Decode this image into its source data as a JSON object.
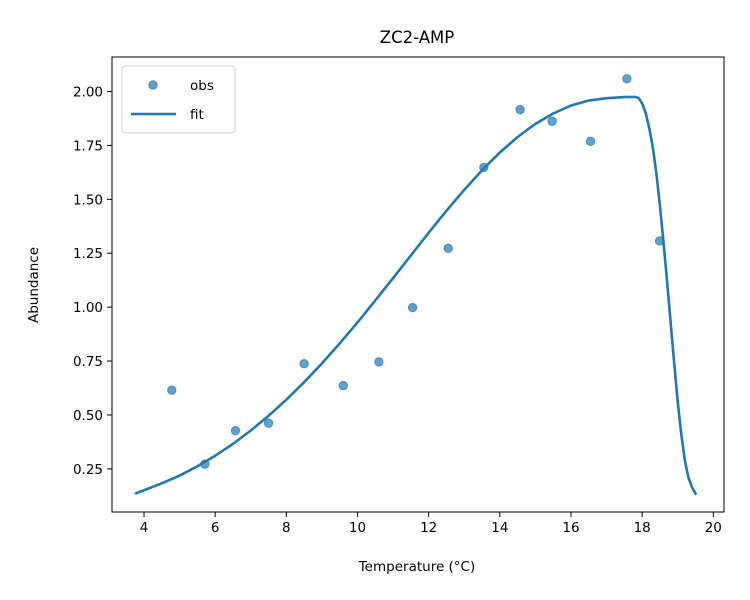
{
  "chart_data": {
    "type": "scatter",
    "title": "ZC2-AMP",
    "xlabel": "Temperature (°C)",
    "ylabel": "Abundance",
    "xlim": [
      3.1,
      20.3
    ],
    "ylim": [
      0.05,
      2.16
    ],
    "xticks": [
      4,
      6,
      8,
      10,
      12,
      14,
      16,
      18,
      20
    ],
    "yticks": [
      0.25,
      0.5,
      0.75,
      1.0,
      1.25,
      1.5,
      1.75,
      2.0
    ],
    "ytick_labels": [
      "0.25",
      "0.50",
      "0.75",
      "1.00",
      "1.25",
      "1.50",
      "1.75",
      "2.00"
    ],
    "grid": false,
    "legend_position": "top-left",
    "colors": {
      "series": "#1f77b4"
    },
    "series": [
      {
        "name": "obs",
        "kind": "scatter",
        "x": [
          4.78,
          5.71,
          6.57,
          7.5,
          8.5,
          9.6,
          10.6,
          11.55,
          12.55,
          13.55,
          14.57,
          15.47,
          16.55,
          17.57,
          18.49
        ],
        "y": [
          0.615,
          0.272,
          0.427,
          0.462,
          0.738,
          0.636,
          0.746,
          0.998,
          1.273,
          1.648,
          1.916,
          1.862,
          1.769,
          2.059,
          1.307
        ]
      },
      {
        "name": "fit",
        "kind": "line",
        "x": [
          3.78,
          4.5,
          5.0,
          5.5,
          6.0,
          6.5,
          7.0,
          7.5,
          8.0,
          8.5,
          9.0,
          9.5,
          10.0,
          10.5,
          11.0,
          11.5,
          12.0,
          12.5,
          13.0,
          13.5,
          14.0,
          14.5,
          15.0,
          15.5,
          16.0,
          16.5,
          17.0,
          17.5,
          17.8,
          17.9,
          18.0,
          18.1,
          18.2,
          18.3,
          18.4,
          18.5,
          18.6,
          18.7,
          18.8,
          18.9,
          19.0,
          19.1,
          19.2,
          19.3,
          19.4,
          19.5
        ],
        "y": [
          0.137,
          0.183,
          0.219,
          0.262,
          0.311,
          0.366,
          0.428,
          0.496,
          0.571,
          0.652,
          0.739,
          0.832,
          0.929,
          1.031,
          1.135,
          1.24,
          1.345,
          1.447,
          1.544,
          1.635,
          1.717,
          1.789,
          1.85,
          1.898,
          1.935,
          1.958,
          1.969,
          1.974,
          1.975,
          1.97,
          1.945,
          1.9,
          1.83,
          1.74,
          1.62,
          1.47,
          1.3,
          1.12,
          0.93,
          0.74,
          0.56,
          0.41,
          0.29,
          0.21,
          0.165,
          0.135
        ]
      }
    ]
  }
}
